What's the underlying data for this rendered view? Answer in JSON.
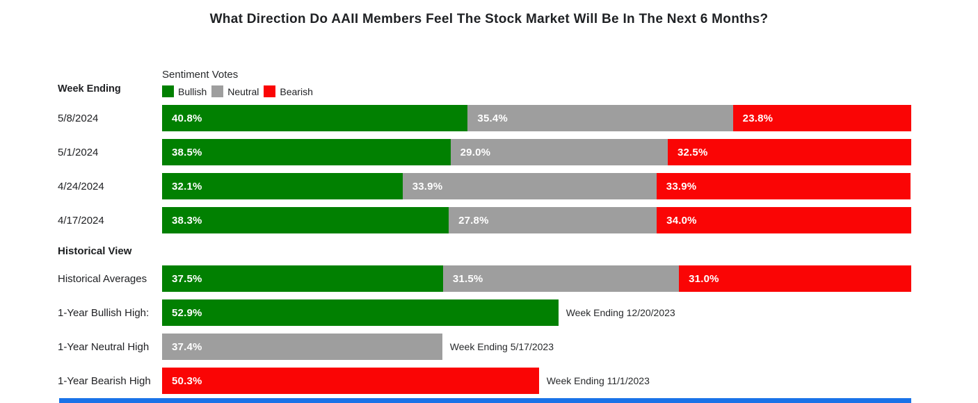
{
  "title": "What Direction Do AAII Members Feel The Stock Market Will Be In The Next 6 Months?",
  "columns": {
    "left_header": "Week Ending"
  },
  "legend": {
    "heading": "Sentiment Votes",
    "items": [
      {
        "label": "Bullish",
        "color": "#018001"
      },
      {
        "label": "Neutral",
        "color": "#9e9e9e"
      },
      {
        "label": "Bearish",
        "color": "#fa0505"
      }
    ]
  },
  "section": {
    "historical_header": "Historical View"
  },
  "chart_data": {
    "type": "bar",
    "variant": "horizontal-stacked",
    "unit": "%",
    "xlim": [
      0,
      100
    ],
    "series": [
      "Bullish",
      "Neutral",
      "Bearish"
    ],
    "colors": {
      "bullish": "#018001",
      "neutral": "#9e9e9e",
      "bearish": "#fa0505"
    },
    "weekly_rows": [
      {
        "label": "5/8/2024",
        "bullish": 40.8,
        "neutral": 35.4,
        "bearish": 23.8,
        "display": {
          "bullish": "40.8%",
          "neutral": "35.4%",
          "bearish": "23.8%"
        }
      },
      {
        "label": "5/1/2024",
        "bullish": 38.5,
        "neutral": 29.0,
        "bearish": 32.5,
        "display": {
          "bullish": "38.5%",
          "neutral": "29.0%",
          "bearish": "32.5%"
        }
      },
      {
        "label": "4/24/2024",
        "bullish": 32.1,
        "neutral": 33.9,
        "bearish": 33.9,
        "display": {
          "bullish": "32.1%",
          "neutral": "33.9%",
          "bearish": "33.9%"
        }
      },
      {
        "label": "4/17/2024",
        "bullish": 38.3,
        "neutral": 27.8,
        "bearish": 34.0,
        "display": {
          "bullish": "38.3%",
          "neutral": "27.8%",
          "bearish": "34.0%"
        }
      }
    ],
    "historical_average_row": {
      "label": "Historical Averages",
      "bullish": 37.5,
      "neutral": 31.5,
      "bearish": 31.0,
      "display": {
        "bullish": "37.5%",
        "neutral": "31.5%",
        "bearish": "31.0%"
      }
    },
    "extreme_rows": [
      {
        "label": "1-Year Bullish High:",
        "series": "Bullish",
        "value": 52.9,
        "display": "52.9%",
        "annotation": "Week Ending 12/20/2023",
        "color": "#018001"
      },
      {
        "label": "1-Year Neutral High",
        "series": "Neutral",
        "value": 37.4,
        "display": "37.4%",
        "annotation": "Week Ending 5/17/2023",
        "color": "#9e9e9e"
      },
      {
        "label": "1-Year Bearish High",
        "series": "Bearish",
        "value": 50.3,
        "display": "50.3%",
        "annotation": "Week Ending 11/1/2023",
        "color": "#fa0505"
      }
    ]
  },
  "footer": {
    "accent_bar_color": "#1a73e8"
  }
}
